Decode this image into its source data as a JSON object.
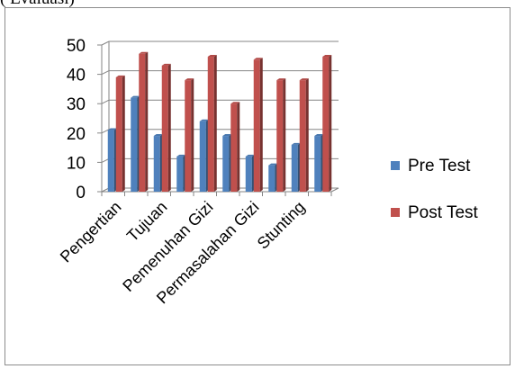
{
  "caption": "( Evaluasi)",
  "chart_data": {
    "type": "bar",
    "style": "3d-clustered-column",
    "categories": [
      "Pengertian",
      "",
      "Tujuan",
      "",
      "Pemenuhan Gizi",
      "",
      "Permasalahan Gizi",
      "",
      "Stunting",
      ""
    ],
    "series": [
      {
        "name": "Pre Test",
        "color": "#4f81bd",
        "values": [
          21,
          32,
          19,
          12,
          24,
          19,
          12,
          9,
          16,
          19
        ]
      },
      {
        "name": "Post Test",
        "color": "#c0504d",
        "values": [
          39,
          47,
          43,
          38,
          46,
          30,
          45,
          38,
          38,
          46
        ]
      }
    ],
    "ylim": [
      0,
      50
    ],
    "yticks": [
      "0",
      "10",
      "20",
      "30",
      "40",
      "50"
    ],
    "grid": true,
    "legend": "right"
  }
}
